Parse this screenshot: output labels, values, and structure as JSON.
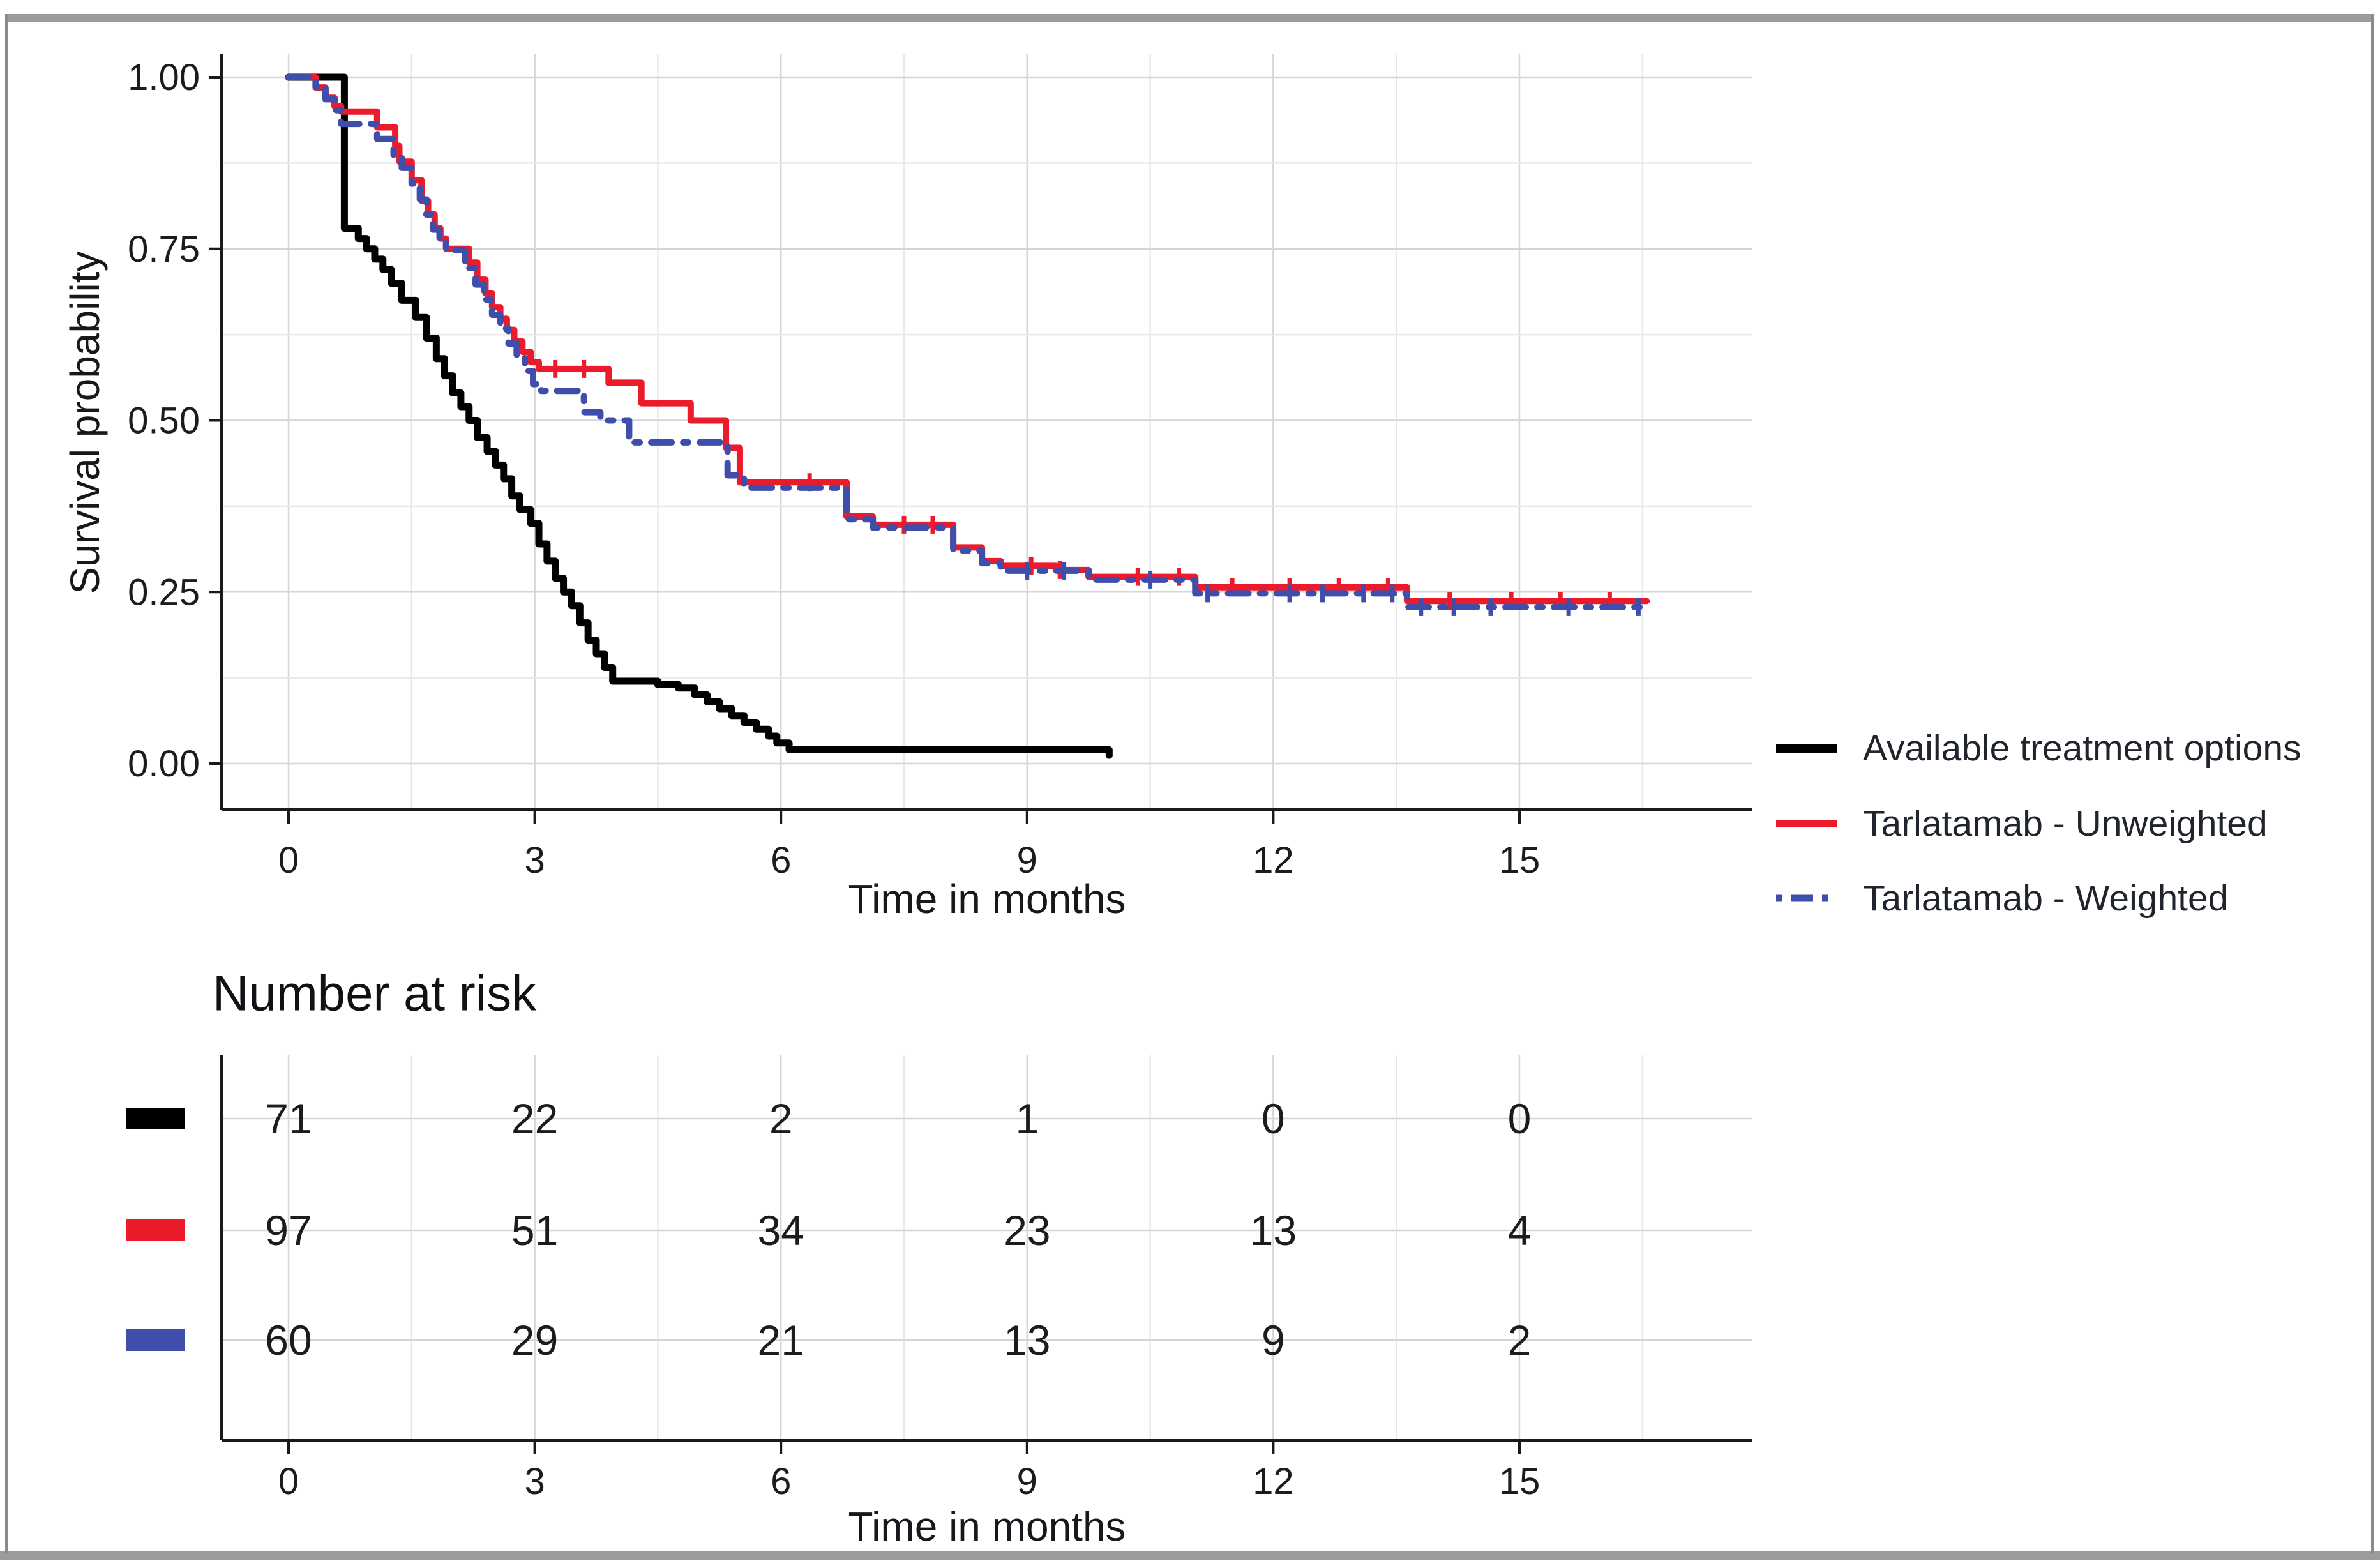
{
  "figure": {
    "background": "#ffffff",
    "frame_color": "#9b9b9b"
  },
  "chart_data": {
    "type": "line",
    "subtype": "kaplan-meier-step-survival",
    "title": "",
    "xlabel": "Time in months",
    "ylabel": "Survival probability",
    "xlim": [
      -0.82,
      17.84
    ],
    "ylim": [
      0,
      1.03
    ],
    "xticks": [
      0,
      3,
      6,
      9,
      12,
      15
    ],
    "yticks": [
      {
        "label": "1.00",
        "value": 1.0
      },
      {
        "label": "0.75",
        "value": 0.75
      },
      {
        "label": "0.50",
        "value": 0.5
      },
      {
        "label": "0.25",
        "value": 0.25
      },
      {
        "label": "0.00",
        "value": 0.0
      }
    ],
    "grid": {
      "major": true,
      "minor": true,
      "major_color": "#d2d6da",
      "minor_color": "#e6e9ec"
    },
    "legend_position": "right",
    "series": [
      {
        "name": "Available treatment options",
        "color": "#000000",
        "style": "solid",
        "steps": [
          [
            0,
            1.0
          ],
          [
            0.68,
            0.78
          ],
          [
            0.85,
            0.765
          ],
          [
            0.95,
            0.75
          ],
          [
            1.05,
            0.735
          ],
          [
            1.15,
            0.72
          ],
          [
            1.25,
            0.7
          ],
          [
            1.38,
            0.675
          ],
          [
            1.55,
            0.65
          ],
          [
            1.68,
            0.62
          ],
          [
            1.8,
            0.59
          ],
          [
            1.9,
            0.565
          ],
          [
            2.0,
            0.54
          ],
          [
            2.1,
            0.52
          ],
          [
            2.2,
            0.5
          ],
          [
            2.3,
            0.475
          ],
          [
            2.42,
            0.455
          ],
          [
            2.52,
            0.435
          ],
          [
            2.62,
            0.415
          ],
          [
            2.72,
            0.39
          ],
          [
            2.82,
            0.37
          ],
          [
            2.95,
            0.35
          ],
          [
            3.05,
            0.32
          ],
          [
            3.15,
            0.295
          ],
          [
            3.25,
            0.27
          ],
          [
            3.35,
            0.25
          ],
          [
            3.45,
            0.23
          ],
          [
            3.55,
            0.205
          ],
          [
            3.65,
            0.18
          ],
          [
            3.75,
            0.16
          ],
          [
            3.85,
            0.14
          ],
          [
            3.95,
            0.12
          ],
          [
            4.5,
            0.115
          ],
          [
            4.75,
            0.11
          ],
          [
            4.95,
            0.1
          ],
          [
            5.1,
            0.09
          ],
          [
            5.25,
            0.08
          ],
          [
            5.4,
            0.07
          ],
          [
            5.55,
            0.06
          ],
          [
            5.7,
            0.05
          ],
          [
            5.85,
            0.04
          ],
          [
            5.95,
            0.03
          ],
          [
            6.1,
            0.02
          ],
          [
            9.9,
            0.02
          ],
          [
            10.0,
            0.012
          ]
        ],
        "censor_times": []
      },
      {
        "name": "Tarlatamab - Unweighted",
        "color": "#ec1b2c",
        "style": "solid",
        "steps": [
          [
            0,
            1.0
          ],
          [
            0.33,
            0.985
          ],
          [
            0.45,
            0.97
          ],
          [
            0.56,
            0.958
          ],
          [
            0.64,
            0.95
          ],
          [
            1.08,
            0.927
          ],
          [
            1.3,
            0.9
          ],
          [
            1.35,
            0.877
          ],
          [
            1.5,
            0.85
          ],
          [
            1.62,
            0.82
          ],
          [
            1.7,
            0.8
          ],
          [
            1.78,
            0.78
          ],
          [
            1.85,
            0.765
          ],
          [
            1.92,
            0.75
          ],
          [
            2.2,
            0.73
          ],
          [
            2.3,
            0.705
          ],
          [
            2.4,
            0.685
          ],
          [
            2.48,
            0.665
          ],
          [
            2.58,
            0.648
          ],
          [
            2.66,
            0.632
          ],
          [
            2.75,
            0.615
          ],
          [
            2.85,
            0.6
          ],
          [
            2.95,
            0.585
          ],
          [
            3.05,
            0.575
          ],
          [
            3.9,
            0.555
          ],
          [
            4.3,
            0.525
          ],
          [
            4.9,
            0.5
          ],
          [
            5.33,
            0.46
          ],
          [
            5.5,
            0.41
          ],
          [
            6.8,
            0.36
          ],
          [
            7.12,
            0.348
          ],
          [
            8.1,
            0.315
          ],
          [
            8.45,
            0.295
          ],
          [
            8.68,
            0.288
          ],
          [
            9.35,
            0.282
          ],
          [
            9.75,
            0.272
          ],
          [
            11.05,
            0.257
          ],
          [
            13.63,
            0.237
          ],
          [
            16.55,
            0.237
          ]
        ],
        "censor_times": [
          3.25,
          3.6,
          6.35,
          7.5,
          7.85,
          9.05,
          9.4,
          10.35,
          10.85,
          11.5,
          12.2,
          12.8,
          13.4,
          14.15,
          14.9,
          15.5,
          16.1
        ]
      },
      {
        "name": "Tarlatamab - Weighted",
        "color": "#3f4dab",
        "style": "dashdot",
        "steps": [
          [
            0,
            1.0
          ],
          [
            0.33,
            0.983
          ],
          [
            0.45,
            0.968
          ],
          [
            0.56,
            0.952
          ],
          [
            0.64,
            0.932
          ],
          [
            1.08,
            0.91
          ],
          [
            1.28,
            0.885
          ],
          [
            1.38,
            0.868
          ],
          [
            1.5,
            0.845
          ],
          [
            1.6,
            0.822
          ],
          [
            1.68,
            0.8
          ],
          [
            1.76,
            0.778
          ],
          [
            1.84,
            0.762
          ],
          [
            1.92,
            0.748
          ],
          [
            2.15,
            0.722
          ],
          [
            2.28,
            0.698
          ],
          [
            2.38,
            0.676
          ],
          [
            2.48,
            0.654
          ],
          [
            2.58,
            0.634
          ],
          [
            2.68,
            0.612
          ],
          [
            2.78,
            0.592
          ],
          [
            2.88,
            0.572
          ],
          [
            2.98,
            0.553
          ],
          [
            3.08,
            0.543
          ],
          [
            3.6,
            0.512
          ],
          [
            3.8,
            0.5
          ],
          [
            4.15,
            0.468
          ],
          [
            5.35,
            0.42
          ],
          [
            5.55,
            0.402
          ],
          [
            6.8,
            0.356
          ],
          [
            7.12,
            0.344
          ],
          [
            8.1,
            0.31
          ],
          [
            8.45,
            0.292
          ],
          [
            8.68,
            0.281
          ],
          [
            9.75,
            0.268
          ],
          [
            11.05,
            0.248
          ],
          [
            13.63,
            0.228
          ],
          [
            16.55,
            0.228
          ]
        ],
        "censor_times": [
          9.0,
          9.45,
          10.5,
          11.2,
          12.2,
          12.6,
          13.1,
          13.45,
          13.8,
          14.2,
          14.65,
          15.6,
          16.45
        ]
      }
    ]
  },
  "legend": {
    "items": [
      {
        "label": "Available treatment options",
        "color": "#000000",
        "style": "solid"
      },
      {
        "label": "Tarlatamab - Unweighted",
        "color": "#ec1b2c",
        "style": "solid"
      },
      {
        "label": "Tarlatamab - Weighted",
        "color": "#3f4dab",
        "style": "dashdot"
      }
    ]
  },
  "risk_table": {
    "title": "Number at risk",
    "xlabel": "Time in months",
    "time_points": [
      0,
      3,
      6,
      9,
      12,
      15
    ],
    "rows": [
      {
        "name": "Available treatment options",
        "color": "#000000",
        "counts": [
          71,
          22,
          2,
          1,
          0,
          0
        ]
      },
      {
        "name": "Tarlatamab - Unweighted",
        "color": "#ec1b2c",
        "counts": [
          97,
          51,
          34,
          23,
          13,
          4
        ]
      },
      {
        "name": "Tarlatamab - Weighted",
        "color": "#3f4dab",
        "counts": [
          60,
          29,
          21,
          13,
          9,
          2
        ]
      }
    ]
  }
}
